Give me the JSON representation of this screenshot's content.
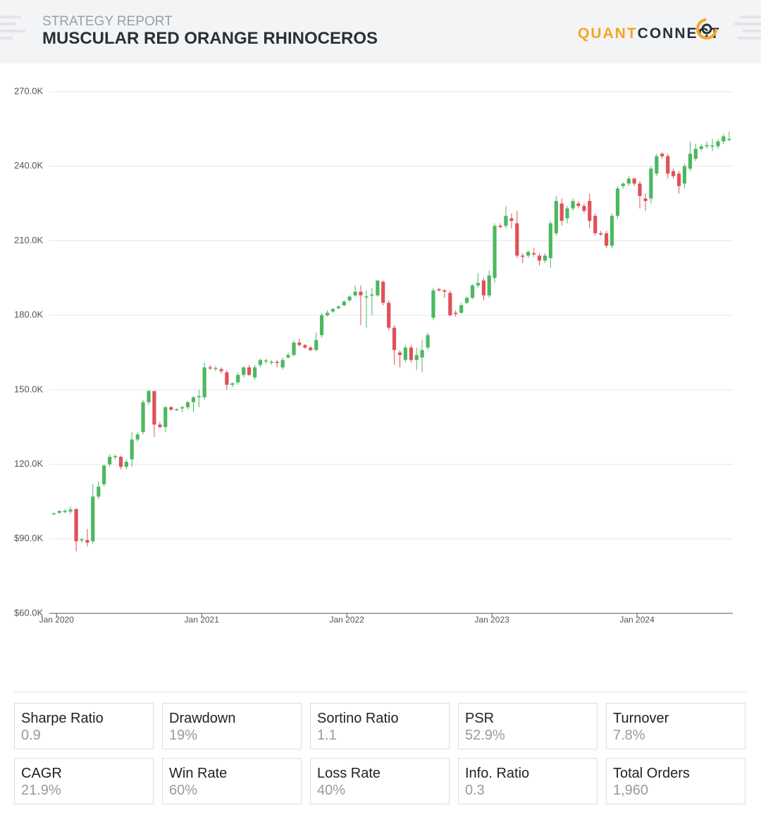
{
  "header": {
    "subtitle": "STRATEGY REPORT",
    "title": "MUSCULAR RED ORANGE RHINOCEROS",
    "logo": [
      "QUANT",
      "CONNECT"
    ]
  },
  "chart_data": {
    "type": "candlestick",
    "up_color": "#4cb860",
    "down_color": "#e0505a",
    "grid": true,
    "ylim": [
      60,
      270
    ],
    "yticks": [
      {
        "value": 60,
        "label": "$60.0K"
      },
      {
        "value": 90,
        "label": "$90.0K"
      },
      {
        "value": 120,
        "label": "120.0K"
      },
      {
        "value": 150,
        "label": "150.0K"
      },
      {
        "value": 180,
        "label": "180.0K"
      },
      {
        "value": 210,
        "label": "210.0K"
      },
      {
        "value": 240,
        "label": "240.0K"
      },
      {
        "value": 270,
        "label": "270.0K"
      }
    ],
    "xlim": [
      2019.95,
      2024.66
    ],
    "xticks": [
      {
        "value": 2020,
        "label": "Jan 2020"
      },
      {
        "value": 2021,
        "label": "Jan 2021"
      },
      {
        "value": 2022,
        "label": "Jan 2022"
      },
      {
        "value": 2023,
        "label": "Jan 2023"
      },
      {
        "value": 2024,
        "label": "Jan 2024"
      }
    ],
    "x": [
      2019.981,
      2020.019,
      2020.058,
      2020.096,
      2020.135,
      2020.173,
      2020.212,
      2020.25,
      2020.289,
      2020.327,
      2020.366,
      2020.404,
      2020.443,
      2020.481,
      2020.519,
      2020.558,
      2020.596,
      2020.635,
      2020.673,
      2020.712,
      2020.75,
      2020.789,
      2020.827,
      2020.866,
      2020.904,
      2020.943,
      2020.981,
      2021.019,
      2021.058,
      2021.096,
      2021.135,
      2021.173,
      2021.212,
      2021.25,
      2021.289,
      2021.327,
      2021.366,
      2021.404,
      2021.443,
      2021.481,
      2021.519,
      2021.558,
      2021.596,
      2021.635,
      2021.673,
      2021.712,
      2021.75,
      2021.789,
      2021.827,
      2021.866,
      2021.904,
      2021.943,
      2021.981,
      2022.019,
      2022.058,
      2022.096,
      2022.135,
      2022.173,
      2022.212,
      2022.25,
      2022.289,
      2022.327,
      2022.366,
      2022.404,
      2022.443,
      2022.481,
      2022.519,
      2022.558,
      2022.596,
      2022.635,
      2022.673,
      2022.712,
      2022.75,
      2022.789,
      2022.827,
      2022.866,
      2022.904,
      2022.943,
      2022.981,
      2023.019,
      2023.058,
      2023.096,
      2023.135,
      2023.173,
      2023.212,
      2023.25,
      2023.289,
      2023.327,
      2023.366,
      2023.404,
      2023.443,
      2023.481,
      2023.519,
      2023.558,
      2023.596,
      2023.635,
      2023.673,
      2023.712,
      2023.75,
      2023.789,
      2023.827,
      2023.866,
      2023.904,
      2023.943,
      2023.981,
      2024.019,
      2024.058,
      2024.096,
      2024.135,
      2024.173,
      2024.212,
      2024.25,
      2024.289,
      2024.327,
      2024.366,
      2024.404,
      2024.443,
      2024.481,
      2024.519,
      2024.558,
      2024.596,
      2024.635
    ],
    "candles": [
      [
        100,
        100.5,
        99.8,
        100.3
      ],
      [
        100.5,
        101.5,
        100,
        101.2
      ],
      [
        100.8,
        102,
        100.3,
        101.3
      ],
      [
        101,
        103,
        100,
        101.8
      ],
      [
        102,
        102.5,
        85,
        89
      ],
      [
        89.5,
        90.5,
        88.5,
        89.8
      ],
      [
        89.5,
        94,
        87,
        88.5
      ],
      [
        89,
        112,
        88,
        107
      ],
      [
        107,
        113,
        106,
        111
      ],
      [
        112,
        120,
        111,
        119.5
      ],
      [
        120,
        124,
        119,
        123
      ],
      [
        123,
        124,
        122,
        123.3
      ],
      [
        123,
        123.5,
        118,
        119
      ],
      [
        119,
        122,
        118,
        121
      ],
      [
        122,
        133,
        119,
        130
      ],
      [
        130,
        133,
        129,
        132
      ],
      [
        133,
        146,
        132,
        145
      ],
      [
        145,
        150,
        144,
        149.5
      ],
      [
        149.5,
        149.5,
        131,
        136
      ],
      [
        136,
        137,
        134.5,
        135
      ],
      [
        135,
        143.5,
        133,
        143
      ],
      [
        143,
        143.5,
        141.5,
        142
      ],
      [
        142,
        142.5,
        141.5,
        142.2
      ],
      [
        142.5,
        143.5,
        141,
        143
      ],
      [
        143,
        145.5,
        142,
        145
      ],
      [
        145,
        147.5,
        141,
        147
      ],
      [
        147,
        150,
        143,
        147.5
      ],
      [
        147,
        161,
        146,
        159
      ],
      [
        159,
        160,
        158,
        158.6
      ],
      [
        158.5,
        159.5,
        157.5,
        158.8
      ],
      [
        158.3,
        159,
        156.5,
        157.5
      ],
      [
        157,
        158,
        150,
        152
      ],
      [
        152,
        153,
        151,
        152.6
      ],
      [
        153,
        157,
        152,
        156
      ],
      [
        156,
        159.5,
        155,
        159
      ],
      [
        159,
        160,
        155.5,
        156
      ],
      [
        155,
        160,
        154,
        159
      ],
      [
        160,
        162.5,
        159,
        162
      ],
      [
        161.5,
        162.5,
        160.5,
        161.8
      ],
      [
        161,
        162,
        160,
        161.3
      ],
      [
        161.2,
        162,
        159,
        160.8
      ],
      [
        159,
        163,
        158,
        162
      ],
      [
        163,
        165,
        162.5,
        164
      ],
      [
        164,
        170,
        163.5,
        169
      ],
      [
        169,
        170.5,
        167.5,
        168
      ],
      [
        168,
        168.5,
        166.5,
        167
      ],
      [
        167,
        167.5,
        165.5,
        166
      ],
      [
        166,
        173,
        165.5,
        170
      ],
      [
        172,
        181,
        171,
        180
      ],
      [
        180,
        182,
        179.5,
        181
      ],
      [
        181.5,
        183,
        181,
        182.5
      ],
      [
        182.8,
        184,
        182.5,
        183.5
      ],
      [
        184,
        186,
        183.5,
        185.5
      ],
      [
        186,
        188,
        185.5,
        187.5
      ],
      [
        188,
        192,
        187.5,
        189.5
      ],
      [
        189.5,
        192,
        176,
        188
      ],
      [
        187.4,
        190,
        175,
        187.6
      ],
      [
        188,
        191,
        180,
        188.3
      ],
      [
        188,
        194,
        187.5,
        194
      ],
      [
        193.5,
        194,
        184,
        185
      ],
      [
        185,
        186,
        174,
        175
      ],
      [
        175,
        176,
        160,
        166
      ],
      [
        165,
        166,
        159,
        164
      ],
      [
        162,
        168,
        161,
        167
      ],
      [
        167,
        168,
        161,
        162
      ],
      [
        162,
        167,
        158,
        164
      ],
      [
        163,
        170,
        157,
        166
      ],
      [
        167,
        173,
        166,
        172
      ],
      [
        179,
        191,
        178,
        190
      ],
      [
        190.5,
        191,
        189.5,
        190
      ],
      [
        190,
        190.5,
        187,
        189.5
      ],
      [
        189,
        190,
        179.5,
        180
      ],
      [
        181,
        182,
        179.5,
        180.5
      ],
      [
        181,
        185,
        180.5,
        184
      ],
      [
        185,
        187.5,
        184.5,
        187
      ],
      [
        187,
        192.5,
        186.5,
        192
      ],
      [
        192,
        197,
        191,
        193
      ],
      [
        194,
        195,
        186,
        188
      ],
      [
        188,
        198,
        187,
        196
      ],
      [
        195,
        217,
        193,
        216
      ],
      [
        216,
        217,
        215,
        215.5
      ],
      [
        216,
        224,
        215,
        220
      ],
      [
        219,
        221,
        215,
        218
      ],
      [
        217,
        222,
        203,
        204
      ],
      [
        204,
        205,
        201,
        203.5
      ],
      [
        204,
        206,
        203,
        205.5
      ],
      [
        205,
        207,
        203.5,
        204.5
      ],
      [
        204,
        205,
        200,
        202
      ],
      [
        202,
        205,
        201,
        204
      ],
      [
        203,
        218,
        199,
        217
      ],
      [
        213,
        228,
        212,
        226
      ],
      [
        225,
        227,
        216,
        218
      ],
      [
        219,
        224,
        217,
        223
      ],
      [
        223,
        227,
        222,
        226
      ],
      [
        225,
        226,
        223,
        224
      ],
      [
        224,
        225,
        221,
        222
      ],
      [
        226,
        229,
        215,
        218
      ],
      [
        220,
        221,
        212,
        213
      ],
      [
        213,
        214,
        212,
        212.5
      ],
      [
        213,
        214,
        207,
        208
      ],
      [
        208,
        221,
        207,
        220
      ],
      [
        220,
        232,
        219,
        231
      ],
      [
        232,
        233.5,
        231,
        233
      ],
      [
        233,
        236,
        232,
        235
      ],
      [
        235,
        235.5,
        232,
        233
      ],
      [
        233,
        234,
        223,
        228
      ],
      [
        227,
        229,
        222,
        226
      ],
      [
        227,
        240,
        225,
        239
      ],
      [
        237,
        245,
        236,
        244
      ],
      [
        245,
        245.5,
        243,
        244
      ],
      [
        244,
        245,
        235,
        237
      ],
      [
        238,
        239,
        235,
        236
      ],
      [
        237,
        238,
        229,
        232
      ],
      [
        233,
        241,
        231,
        240
      ],
      [
        239,
        250,
        238,
        245
      ],
      [
        243,
        249,
        242,
        247
      ],
      [
        247,
        249,
        246,
        248
      ],
      [
        248,
        250,
        247,
        248.5
      ],
      [
        248,
        251,
        246,
        248.3
      ],
      [
        248,
        251,
        247,
        250
      ],
      [
        250,
        253,
        249,
        252
      ],
      [
        251,
        254,
        250,
        251
      ]
    ]
  },
  "stats": [
    {
      "label": "Sharpe Ratio",
      "value": "0.9"
    },
    {
      "label": "Drawdown",
      "value": "19%"
    },
    {
      "label": "Sortino Ratio",
      "value": "1.1"
    },
    {
      "label": "PSR",
      "value": "52.9%"
    },
    {
      "label": "Turnover",
      "value": "7.8%"
    },
    {
      "label": "CAGR",
      "value": "21.9%"
    },
    {
      "label": "Win Rate",
      "value": "60%"
    },
    {
      "label": "Loss Rate",
      "value": "40%"
    },
    {
      "label": "Info. Ratio",
      "value": "0.3"
    },
    {
      "label": "Total Orders",
      "value": "1,960"
    }
  ]
}
